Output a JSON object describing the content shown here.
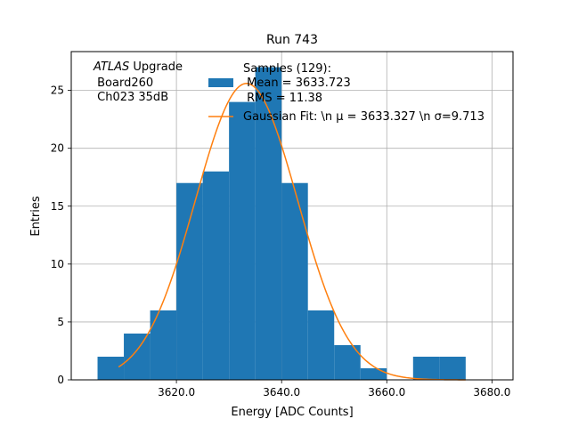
{
  "chart_data": {
    "type": "bar",
    "title": "Run 743",
    "xlabel": "Energy [ADC Counts]",
    "ylabel": "Entries",
    "xlim": [
      3600.0,
      3684.0
    ],
    "ylim": [
      0,
      28.35
    ],
    "grid": true,
    "x_ticks": [
      3620.0,
      3640.0,
      3660.0,
      3680.0
    ],
    "x_tick_labels": [
      "3620.0",
      "3640.0",
      "3660.0",
      "3680.0"
    ],
    "y_ticks": [
      0,
      5,
      10,
      15,
      20,
      25
    ],
    "y_tick_labels": [
      "0",
      "5",
      "10",
      "15",
      "20",
      "25"
    ],
    "bins": [
      {
        "x0": 3605,
        "x1": 3610,
        "count": 2
      },
      {
        "x0": 3610,
        "x1": 3615,
        "count": 4
      },
      {
        "x0": 3615,
        "x1": 3620,
        "count": 6
      },
      {
        "x0": 3620,
        "x1": 3625,
        "count": 17
      },
      {
        "x0": 3625,
        "x1": 3630,
        "count": 18
      },
      {
        "x0": 3630,
        "x1": 3635,
        "count": 24
      },
      {
        "x0": 3635,
        "x1": 3640,
        "count": 27
      },
      {
        "x0": 3640,
        "x1": 3645,
        "count": 17
      },
      {
        "x0": 3645,
        "x1": 3650,
        "count": 6
      },
      {
        "x0": 3650,
        "x1": 3655,
        "count": 3
      },
      {
        "x0": 3655,
        "x1": 3660,
        "count": 1
      },
      {
        "x0": 3660,
        "x1": 3665,
        "count": 0
      },
      {
        "x0": 3665,
        "x1": 3670,
        "count": 2
      },
      {
        "x0": 3670,
        "x1": 3675,
        "count": 2
      }
    ],
    "fit": {
      "mu": 3633.327,
      "sigma": 9.713,
      "amplitude": 25.6,
      "x_range": [
        3609,
        3675
      ]
    },
    "annotation": {
      "italic": "ATLAS",
      "rest": " Upgrade",
      "line2": " Board260",
      "line3": " Ch023 35dB"
    },
    "legend": {
      "placement": "top-right",
      "hist_lines": [
        "Samples (129):",
        " Mean = 3633.723",
        " RMS = 11.38"
      ],
      "fit_label": "Gaussian Fit: \\n μ = 3633.327 \\n σ=9.713"
    },
    "colors": {
      "hist": "#1f77b4",
      "fit": "#ff7f0e",
      "grid": "#b0b0b0"
    }
  }
}
